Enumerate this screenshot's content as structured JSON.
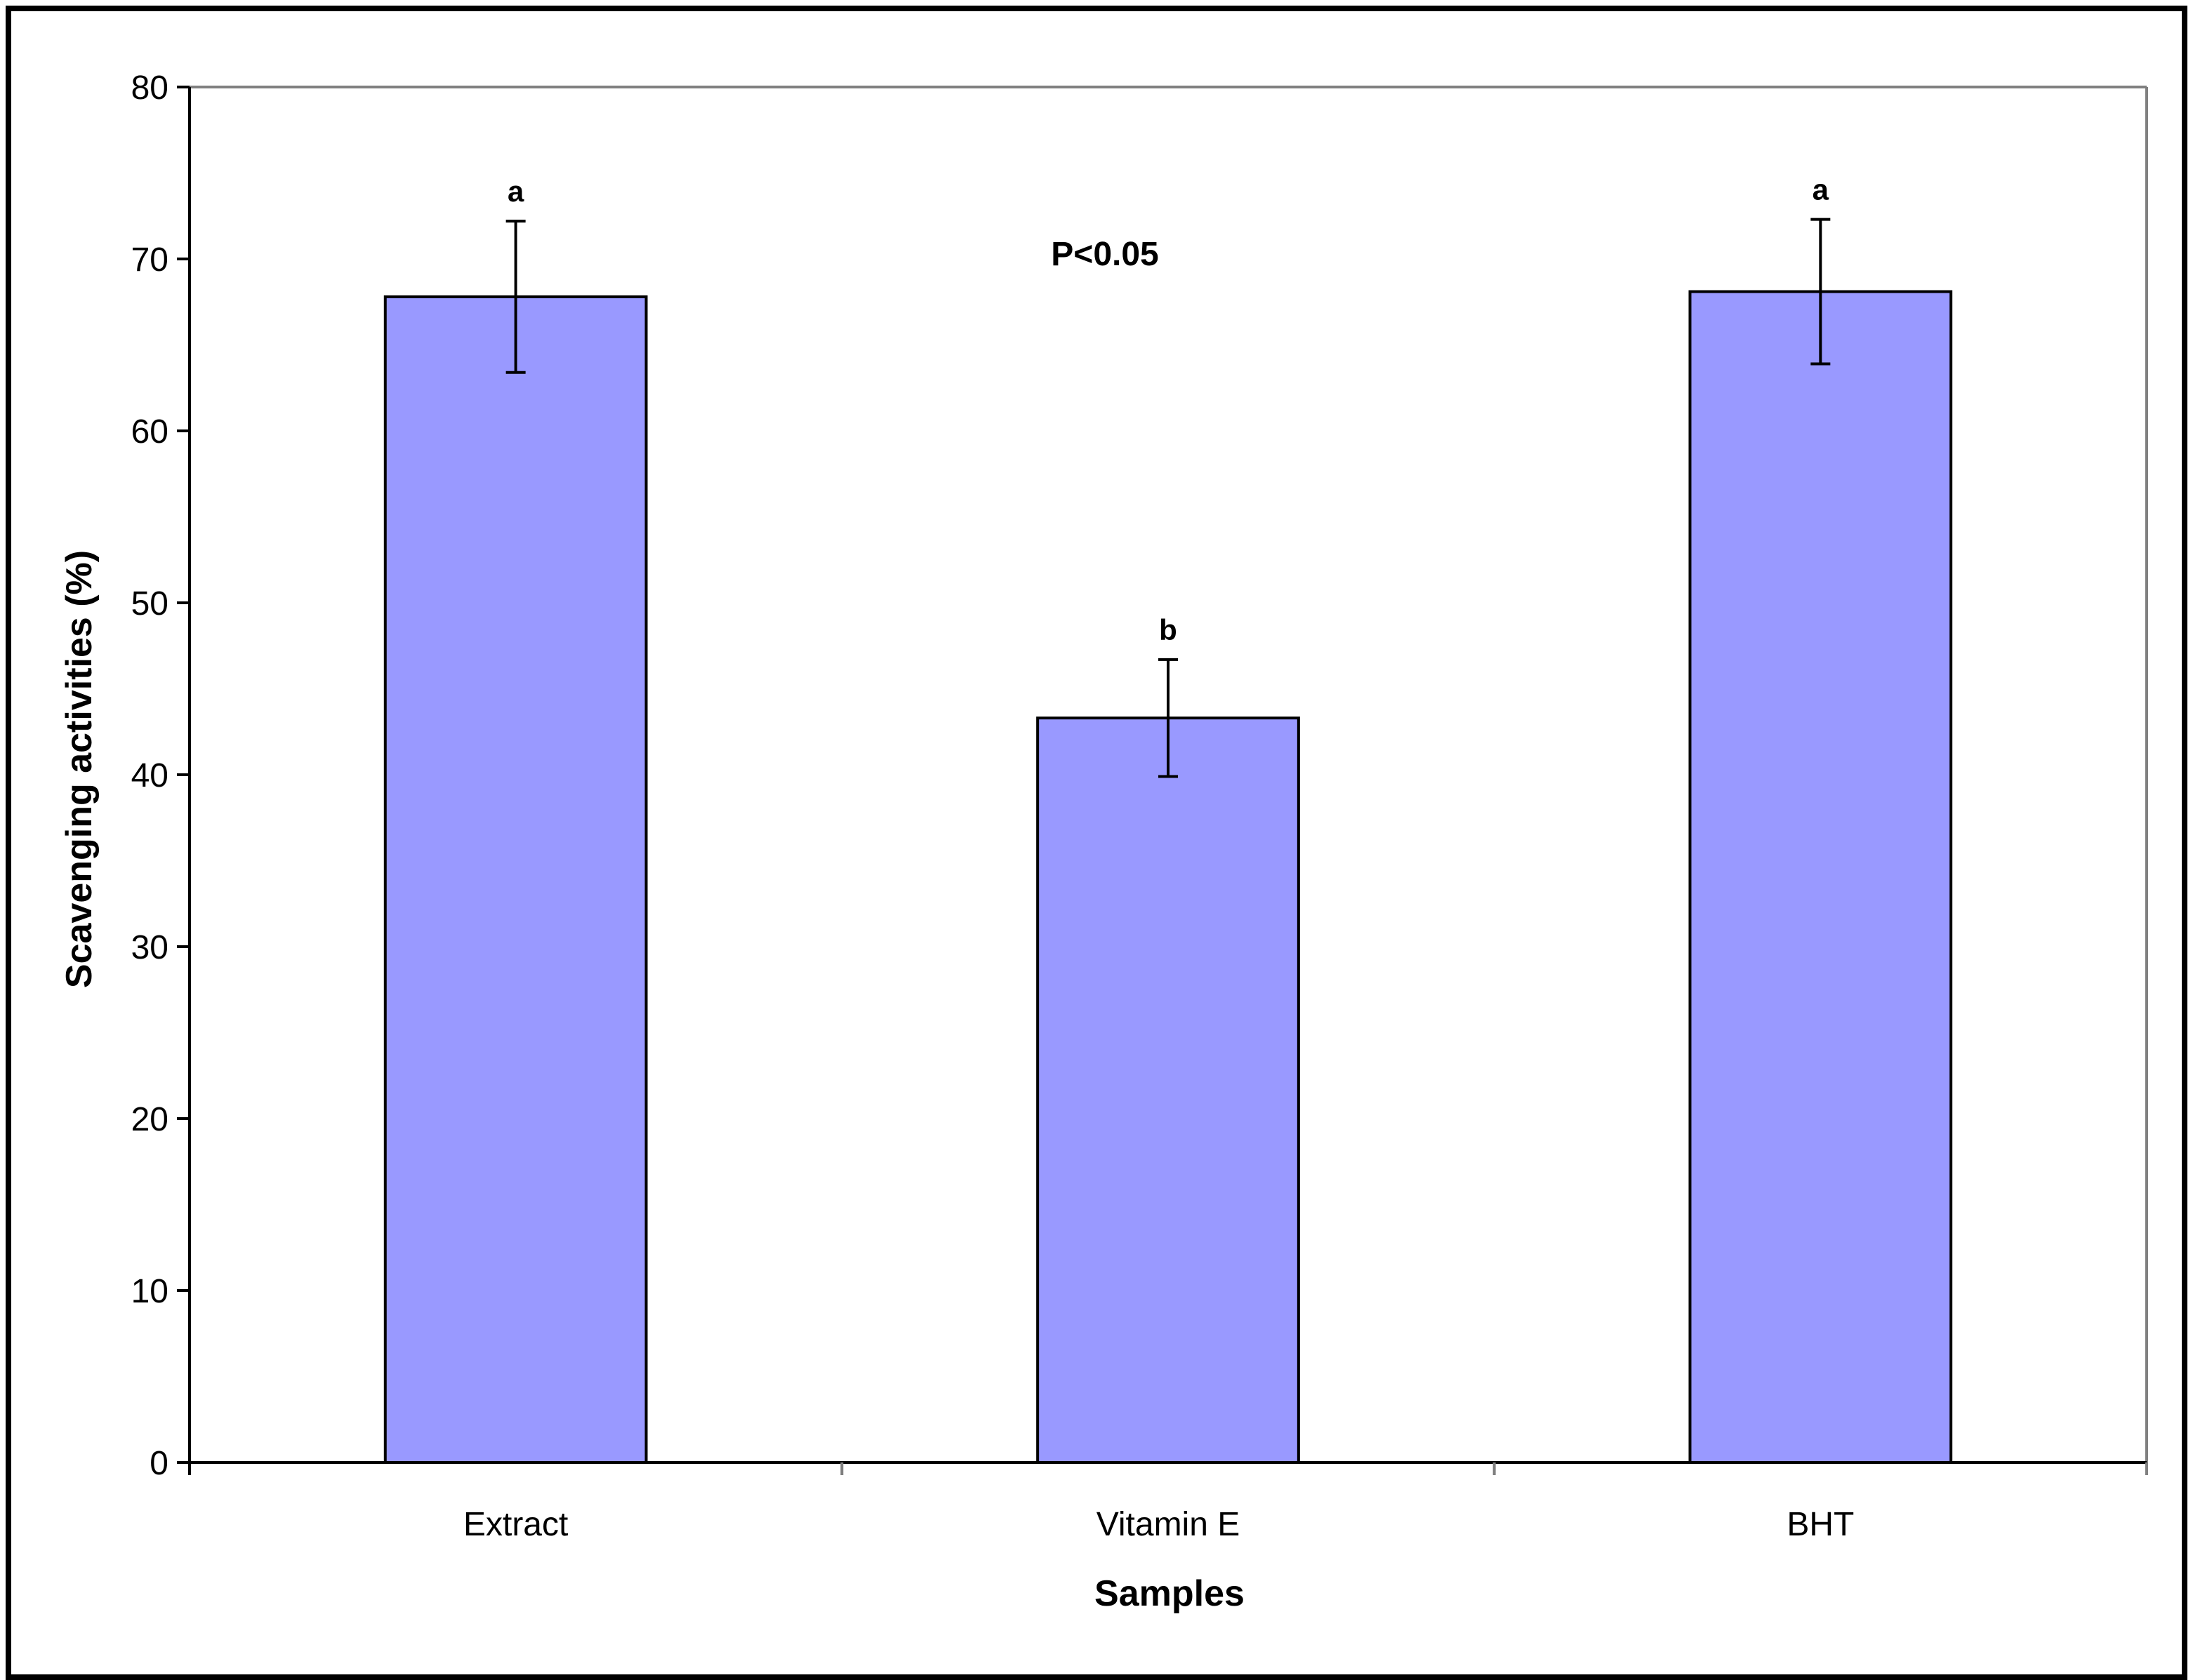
{
  "chart_data": {
    "type": "bar",
    "categories": [
      "Extract",
      "Vitamin E",
      "BHT"
    ],
    "values": [
      67.8,
      43.3,
      68.1
    ],
    "errors": [
      4.4,
      3.4,
      4.2
    ],
    "significance_letters": [
      "a",
      "b",
      "a"
    ],
    "annotation": "P<0.05",
    "xlabel": "Samples",
    "ylabel": "Scavenging activities (%)",
    "ylim": [
      0,
      80
    ],
    "yticks": [
      0,
      10,
      20,
      30,
      40,
      50,
      60,
      70,
      80
    ],
    "grid": false,
    "legend": "none",
    "colors": {
      "bar_fill": "#9999ff",
      "bar_edge": "#000000",
      "plot_frame": "#808080"
    }
  }
}
